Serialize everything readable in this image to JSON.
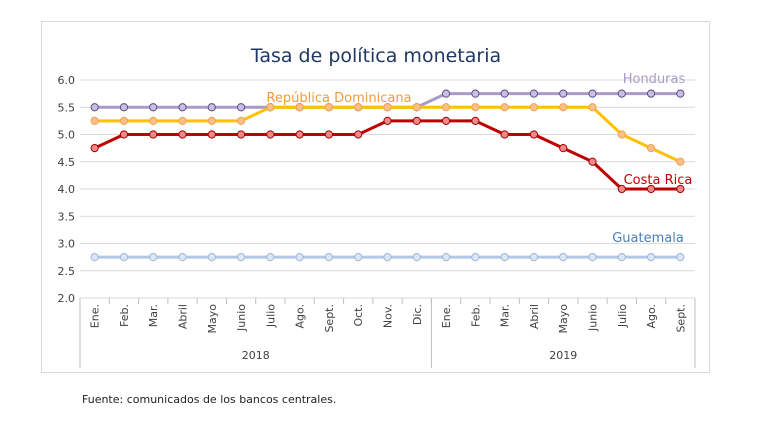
{
  "source_note": "Fuente: comunicados de los bancos centrales.",
  "chart_data": {
    "type": "line",
    "title": "Tasa de política monetaria",
    "xlabel": "",
    "ylabel": "",
    "ylim": [
      2.0,
      6.0
    ],
    "ytick_labels": [
      "2.0",
      "2.5",
      "3.0",
      "3.5",
      "4.0",
      "4.5",
      "5.0",
      "5.5",
      "6.0"
    ],
    "grid": true,
    "categories": [
      "Ene.",
      "Feb.",
      "Mar.",
      "Abril",
      "Mayo",
      "Junio",
      "Julio",
      "Ago.",
      "Sept.",
      "Oct.",
      "Nov.",
      "Dic.",
      "Ene.",
      "Feb.",
      "Mar.",
      "Abril",
      "Mayo",
      "Junio",
      "Julio",
      "Ago.",
      "Sept."
    ],
    "year_groups": [
      {
        "label": "2018",
        "count": 12
      },
      {
        "label": "2019",
        "count": 9
      }
    ],
    "series": [
      {
        "name": "Honduras",
        "color": "#a99bc9",
        "marker_fill": "#c9bfe0",
        "marker_stroke": "#5a4a85",
        "values": [
          5.5,
          5.5,
          5.5,
          5.5,
          5.5,
          5.5,
          5.5,
          5.5,
          5.5,
          5.5,
          5.5,
          5.5,
          5.75,
          5.75,
          5.75,
          5.75,
          5.75,
          5.75,
          5.75,
          5.75,
          5.75
        ]
      },
      {
        "name": "República Dominicana",
        "color": "#ffc000",
        "marker_fill": "#f9c08a",
        "marker_stroke": "#f0a050",
        "label_color": "#f29a3a",
        "values": [
          5.25,
          5.25,
          5.25,
          5.25,
          5.25,
          5.25,
          5.5,
          5.5,
          5.5,
          5.5,
          5.5,
          5.5,
          5.5,
          5.5,
          5.5,
          5.5,
          5.5,
          5.5,
          5.0,
          4.75,
          4.5
        ]
      },
      {
        "name": "Costa Rica",
        "color": "#c00000",
        "marker_fill": "#f08a8a",
        "marker_stroke": "#a00000",
        "values": [
          4.75,
          5.0,
          5.0,
          5.0,
          5.0,
          5.0,
          5.0,
          5.0,
          5.0,
          5.0,
          5.25,
          5.25,
          5.25,
          5.25,
          5.0,
          5.0,
          4.75,
          4.5,
          4.0,
          4.0,
          4.0
        ]
      },
      {
        "name": "Guatemala",
        "color": "#b4c7e7",
        "marker_fill": "#dce6f4",
        "marker_stroke": "#9db3d9",
        "label_color": "#4a7ebb",
        "values": [
          2.75,
          2.75,
          2.75,
          2.75,
          2.75,
          2.75,
          2.75,
          2.75,
          2.75,
          2.75,
          2.75,
          2.75,
          2.75,
          2.75,
          2.75,
          2.75,
          2.75,
          2.75,
          2.75,
          2.75,
          2.75
        ]
      }
    ]
  }
}
